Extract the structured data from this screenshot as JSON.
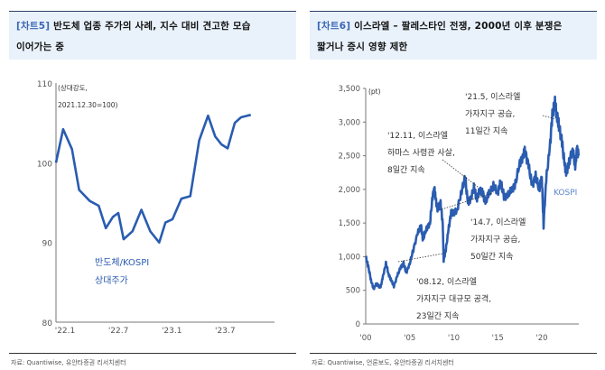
{
  "chart_data": [
    {
      "type": "line",
      "tag": "[차트5]",
      "title_line1": "반도체 업종 주가의 사례, 지수 대비 견고한 모습",
      "title_line2": "이어가는 중",
      "unit_line1": "(상대강도,",
      "unit_line2": "2021.12.30=100)",
      "series_label_line1": "반도체/KOSPI",
      "series_label_line2": "상대주가",
      "xlabel": "",
      "ylabel": "",
      "ylim": [
        80,
        110
      ],
      "yticks": [
        80,
        90,
        100,
        110
      ],
      "xlim": [
        0,
        23
      ],
      "xticks": [
        {
          "v": 0,
          "label": "'22.1"
        },
        {
          "v": 6,
          "label": "'22.7"
        },
        {
          "v": 12,
          "label": "'23.1"
        },
        {
          "v": 18,
          "label": "'23.7"
        }
      ],
      "x_unit": "months since 2022.1",
      "series": [
        {
          "name": "반도체/KOSPI 상대주가",
          "color": "#2a5cb0",
          "x": [
            0,
            0.8,
            1.8,
            2.6,
            3.8,
            4.8,
            5.6,
            6.4,
            7.0,
            7.6,
            8.6,
            9.6,
            10.6,
            11.6,
            12.3,
            13.1,
            14.1,
            15.1,
            16.1,
            17.1,
            17.9,
            18.6,
            19.3,
            20.1,
            20.8,
            21.5,
            21.9
          ],
          "y": [
            100,
            104.2,
            101.7,
            96.6,
            95.2,
            94.6,
            91.8,
            93.2,
            93.7,
            90.4,
            91.4,
            94.1,
            91.4,
            90.0,
            92.5,
            92.9,
            95.5,
            95.8,
            102.8,
            105.9,
            103.3,
            102.3,
            101.8,
            105.0,
            105.7,
            105.9,
            106.0
          ]
        }
      ]
    },
    {
      "type": "line",
      "tag": "[차트6]",
      "title_line1": "이스라엘 – 팔레스타인 전쟁, 2000년 이후 분쟁은",
      "title_line2": "짧거나 증시 영향 제한",
      "unit": "(pt)",
      "series_label": "KOSPI",
      "ylim": [
        0,
        3500
      ],
      "yticks": [
        {
          "v": 0,
          "label": "0"
        },
        {
          "v": 500,
          "label": "500"
        },
        {
          "v": 1000,
          "label": "1,000"
        },
        {
          "v": 1500,
          "label": "1,500"
        },
        {
          "v": 2000,
          "label": "2,000"
        },
        {
          "v": 2500,
          "label": "2,500"
        },
        {
          "v": 3000,
          "label": "3,000"
        },
        {
          "v": 3500,
          "label": "3,500"
        }
      ],
      "xlim": [
        2000,
        2024.3
      ],
      "xticks": [
        {
          "v": 2000,
          "label": "'00"
        },
        {
          "v": 2005,
          "label": "'05"
        },
        {
          "v": 2010,
          "label": "'10"
        },
        {
          "v": 2015,
          "label": "'15"
        },
        {
          "v": 2020,
          "label": "'20"
        }
      ],
      "series": [
        {
          "name": "KOSPI",
          "color": "#2a5cb0",
          "x": [
            2000.0,
            2000.3,
            2000.6,
            2000.9,
            2001.2,
            2001.5,
            2001.7,
            2001.95,
            2002.3,
            2002.6,
            2002.9,
            2003.2,
            2003.6,
            2004.0,
            2004.3,
            2004.6,
            2005.0,
            2005.4,
            2005.9,
            2006.3,
            2006.5,
            2006.9,
            2007.3,
            2007.6,
            2007.8,
            2007.95,
            2008.2,
            2008.5,
            2008.75,
            2008.85,
            2009.1,
            2009.4,
            2009.7,
            2010.0,
            2010.4,
            2010.9,
            2011.3,
            2011.6,
            2011.9,
            2012.3,
            2012.6,
            2012.9,
            2013.3,
            2013.6,
            2014.0,
            2014.5,
            2015.0,
            2015.3,
            2015.7,
            2016.1,
            2016.6,
            2017.0,
            2017.5,
            2017.9,
            2018.1,
            2018.5,
            2018.9,
            2019.3,
            2019.7,
            2020.0,
            2020.2,
            2020.5,
            2020.9,
            2021.2,
            2021.5,
            2021.7,
            2021.95,
            2022.3,
            2022.6,
            2022.8,
            2023.1,
            2023.5,
            2023.8,
            2024.0,
            2024.2
          ],
          "y": [
            1000,
            850,
            650,
            520,
            600,
            560,
            550,
            700,
            900,
            740,
            650,
            560,
            720,
            850,
            900,
            760,
            900,
            1100,
            1350,
            1450,
            1250,
            1420,
            1500,
            1900,
            2000,
            1850,
            1700,
            1800,
            1500,
            950,
            1100,
            1400,
            1650,
            1650,
            1700,
            1980,
            2180,
            1800,
            1850,
            2030,
            1850,
            1980,
            1950,
            1800,
            1950,
            2050,
            1950,
            2120,
            1900,
            1900,
            2000,
            2080,
            2400,
            2500,
            2570,
            2350,
            2050,
            2200,
            2000,
            2200,
            1460,
            2150,
            2600,
            3100,
            3300,
            3100,
            2950,
            2700,
            2350,
            2250,
            2400,
            2600,
            2350,
            2600,
            2500
          ]
        }
      ],
      "annotations": [
        {
          "lines": [
            "'21.5, 이스라엘",
            "가자지구 공습,",
            "11일간 지속"
          ],
          "x": 2021.4,
          "y": 3050
        },
        {
          "lines": [
            "'12.11, 이스라엘",
            "하마스 사령관 사살,",
            "8일간 지속"
          ],
          "x": 2012.9,
          "y": 2020
        },
        {
          "lines": [
            "'14.7, 이스라엘",
            "가자지구 공습,",
            "50일간 지속"
          ],
          "x": 2014.5,
          "y": 1950
        },
        {
          "lines": [
            "'08.12, 이스라엘",
            "가자지구 대규모 공격,",
            "23일간 지속"
          ],
          "x": 2008.9,
          "y": 1050
        }
      ]
    }
  ],
  "sources": [
    "자료: Quantiwise, 유안타증권 리서치센터",
    "자료: Quantiwise, 언론보도, 유안타증권 리서치센터"
  ]
}
